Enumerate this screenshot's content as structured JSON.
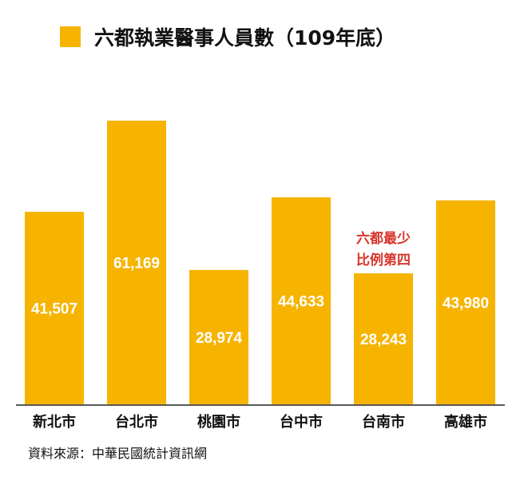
{
  "chart_data": {
    "type": "bar",
    "title": "六都執業醫事人員數（109年底）",
    "legend": {
      "placement": "top-left"
    },
    "categories": [
      "新北市",
      "台北市",
      "桃園市",
      "台中市",
      "台南市",
      "高雄市"
    ],
    "values": [
      41507,
      61169,
      28974,
      44633,
      28243,
      43980
    ],
    "value_labels": [
      "41,507",
      "61,169",
      "28,974",
      "44,633",
      "28,243",
      "43,980"
    ],
    "ylim": [
      0,
      61169
    ],
    "grid": false,
    "annotations": [
      {
        "category": "台南市",
        "lines": [
          "六都最少",
          "比例第四"
        ],
        "color": "#D8342A"
      }
    ],
    "source": "資料來源：中華民國統計資訊網",
    "colors": {
      "bar": "#F6B400",
      "label": "#FFFFFF",
      "axis": "#222222"
    }
  }
}
